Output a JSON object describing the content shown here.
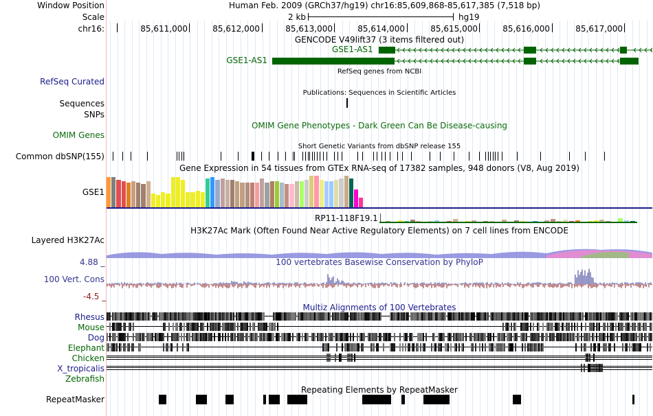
{
  "header": {
    "window_position_label": "Window Position",
    "window_position_value": "Human Feb. 2009 (GRCh37/hg19)   chr16:85,609,868-85,617,385 (7,518 bp)",
    "scale_label": "Scale",
    "scale_value": "2 kb",
    "scale_assembly": "hg19",
    "chrom_label": "chr16:",
    "positions": [
      "85,611,000",
      "85,612,000",
      "85,613,000",
      "85,614,000",
      "85,615,000",
      "85,616,000",
      "85,617,000"
    ]
  },
  "tracks": {
    "gencode_title": "GENCODE V49lift37 (3 items filtered out)",
    "gse1_as1_label": "GSE1-AS1",
    "refseq_title": "RefSeq genes from NCBI",
    "refseq_label": "RefSeq Curated",
    "publications_title": "Publications: Sequences in Scientific Articles",
    "sequences_label": "Sequences",
    "snps_label": "SNPs",
    "omim_label": "OMIM Genes",
    "omim_title": "OMIM Gene Phenotypes - Dark Green Can Be Disease-causing",
    "dbsnp_title": "Short Genetic Variants from dbSNP release 155",
    "dbsnp_label": "Common dbSNP(155)",
    "gtex_title": "Gene Expression in 54 tissues from GTEx RNA-seq of 17382 samples, 948 donors (V8, Aug 2019)",
    "gtex_gene_label": "GSE1",
    "gtex_gene2_label": "RP11-118F19.1",
    "h3k27_title": "H3K27Ac Mark (Often Found Near Active Regulatory Elements) on 7 cell lines from ENCODE",
    "h3k27_label": "Layered H3K27Ac",
    "cons_max": "4.88 _",
    "cons_min": "-4.5 _",
    "cons_title": "100 vertebrates Basewise Conservation by PhyloP",
    "cons_label": "100 Vert. Cons",
    "multiz_title": "Multiz Alignments of 100 Vertebrates",
    "species": [
      "Rhesus",
      "Mouse",
      "Dog",
      "Elephant",
      "Chicken",
      "X_tropicalis",
      "Zebrafish"
    ],
    "repeat_title": "Repeating Elements by RepeatMasker",
    "repeat_label": "RepeatMasker"
  },
  "colors": {
    "gene_green": "#006400",
    "label_blue": "#1a1a8c",
    "omim_green": "#0b6b0b",
    "cons_blue": "#33338f",
    "cons_red": "#8b1a1a"
  },
  "gtex_values": [
    44,
    44,
    40,
    38,
    36,
    38,
    36,
    34,
    38,
    20,
    18,
    22,
    20,
    44,
    44,
    40,
    22,
    22,
    24,
    22,
    42,
    44,
    40,
    42,
    40,
    40,
    38,
    36,
    36,
    36,
    36,
    42,
    36,
    38,
    38,
    36,
    34,
    34,
    38,
    38,
    40,
    46,
    46,
    40,
    38,
    38,
    40,
    42,
    46,
    42,
    26,
    14
  ],
  "gtex_colors": [
    "#ff9933",
    "#7f7f7f",
    "#e05050",
    "#e05050",
    "#e08020",
    "#c8a080",
    "#a08070",
    "#a08070",
    "#d0b090",
    "#eeee22",
    "#eeee22",
    "#eeee22",
    "#eeee22",
    "#eeee22",
    "#eeee22",
    "#eeee22",
    "#eeee22",
    "#eeee22",
    "#eeee22",
    "#eeee22",
    "#33cc99",
    "#3399ff",
    "#99aacc",
    "#c0a0a0",
    "#c8b0a0",
    "#a08070",
    "#c0a080",
    "#c0a080",
    "#b09080",
    "#c08070",
    "#f0a0a0",
    "#c0a0a0",
    "#a0a0a0",
    "#b08060",
    "#99cc33",
    "#aabbcc",
    "#c09080",
    "#ffbbcc",
    "#ccbbaa",
    "#aaff66",
    "#cccccc",
    "#ddcc77",
    "#ff99aa",
    "#eeee88",
    "#aaccff",
    "#99ccff",
    "#ddddaa",
    "#cccccc",
    "#ccaa88",
    "#006655",
    "#ff00cc",
    "#ff3399"
  ]
}
